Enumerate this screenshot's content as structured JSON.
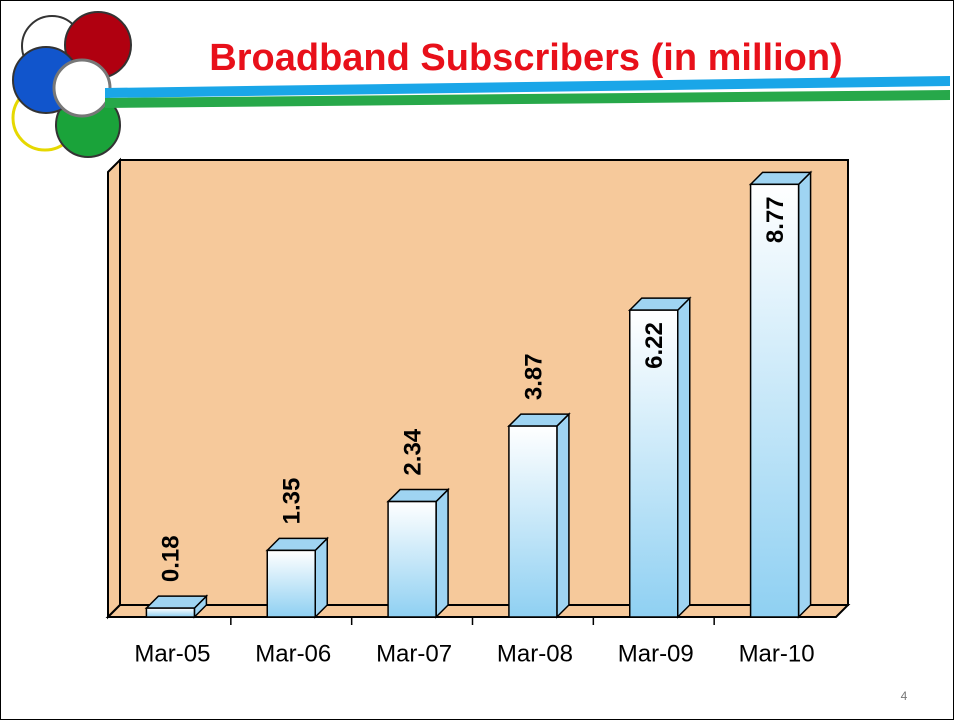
{
  "chart_data": {
    "type": "bar3d",
    "title": "Broadband Subscribers (in million)",
    "categories": [
      "Mar-05",
      "Mar-06",
      "Mar-07",
      "Mar-08",
      "Mar-09",
      "Mar-10"
    ],
    "values": [
      0.18,
      1.35,
      2.34,
      3.87,
      6.22,
      8.77
    ],
    "color": "#9fd4f2",
    "ylim": [
      0,
      9
    ]
  },
  "slide_number": "4"
}
